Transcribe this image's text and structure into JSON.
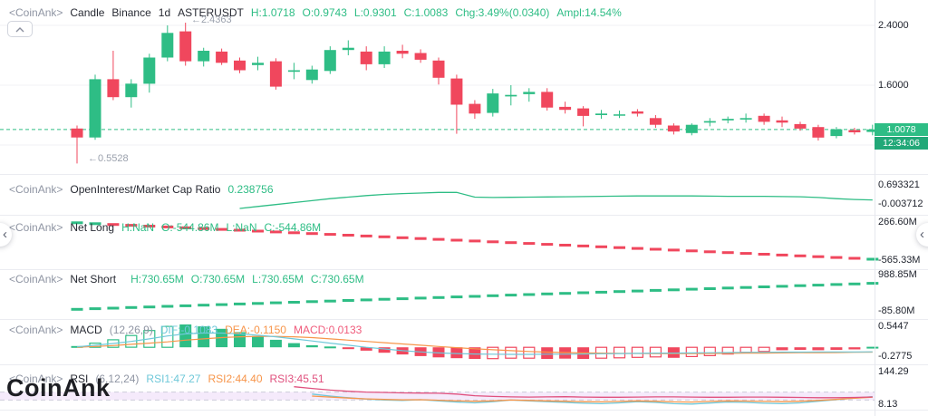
{
  "colors": {
    "up": "#2ebd85",
    "down": "#f0475d",
    "dif": "#6fc8d9",
    "dea": "#f7954a",
    "macd_hist_label": "#f05b7b",
    "rsi1": "#6fc8d9",
    "rsi2": "#f7954a",
    "rsi3": "#e0517e",
    "oi_line": "#2ebd85",
    "band_fill": "#f5eafb",
    "band_line": "#cbccd9",
    "grid": "#f1f2f6",
    "badge_price": "#2ebd85",
    "badge_time": "#22a878"
  },
  "main_header": {
    "tag": "<CoinAnk>",
    "type": "Candle",
    "exchange": "Binance",
    "interval": "1d",
    "symbol": "ASTERUSDT",
    "h": "H:1.0718",
    "o": "O:0.9743",
    "l": "L:0.9301",
    "c": "C:1.0083",
    "chg": "Chg:3.49%(0.0340)",
    "ampl": "Ampl:14.54%"
  },
  "oi_header": {
    "tag": "<CoinAnk>",
    "name": "OpenInterest/Market Cap Ratio",
    "value": "0.238756"
  },
  "netlong_header": {
    "tag": "<CoinAnk>",
    "name": "Net Long",
    "h": "H:NaN",
    "o": "O:-544.86M",
    "l": "L:NaN",
    "c": "C:-544.86M"
  },
  "netshort_header": {
    "tag": "<CoinAnk>",
    "name": "Net Short",
    "h": "H:730.65M",
    "o": "O:730.65M",
    "l": "L:730.65M",
    "c": "C:730.65M"
  },
  "macd_header": {
    "tag": "<CoinAnk>",
    "name": "MACD",
    "params": "(12,26,9)",
    "dif": "DIF:-0.1083",
    "dea": "DEA:-0.1150",
    "macd": "MACD:0.0133"
  },
  "rsi_header": {
    "tag": "<CoinAnk>",
    "name": "RSI",
    "params": "(6,12,24)",
    "rsi1": "RSI1:47.27",
    "rsi2": "RSI2:44.40",
    "rsi3": "RSI3:45.51"
  },
  "axis": {
    "price_top": "2.4000",
    "price_mid": "1.6000",
    "price_badge": "1.0078",
    "countdown": "12:34:06",
    "oi_max": "0.693321",
    "oi_min": "-0.003712",
    "nl_max": "266.60M",
    "nl_min": "-565.33M",
    "ns_max": "988.85M",
    "ns_min": "-85.80M",
    "macd_max": "0.5447",
    "macd_min": "-0.2775",
    "rsi_max": "144.29",
    "rsi_min": "8.13"
  },
  "annotations": {
    "high": "←2.4363",
    "low": "←0.5528"
  },
  "watermark": "CoinAnk",
  "nav": {
    "left_arrow": "‹",
    "right_arrow": "‹"
  },
  "chart_data": [
    {
      "id": "candles",
      "type": "candlestick",
      "pane": "main",
      "symbol": "ASTERUSDT",
      "exchange": "Binance",
      "interval": "1d",
      "axis_labels": [
        2.4,
        1.6
      ],
      "last_price": 1.0078,
      "annotated_high": 2.4363,
      "annotated_low": 0.5528,
      "ohlc": [
        [
          1.02,
          1.06,
          0.5528,
          0.9
        ],
        [
          0.9,
          1.74,
          0.87,
          1.68
        ],
        [
          1.68,
          2.06,
          1.4,
          1.44
        ],
        [
          1.44,
          1.68,
          1.3,
          1.62
        ],
        [
          1.62,
          2.02,
          1.5,
          1.97
        ],
        [
          1.97,
          2.4,
          1.92,
          2.3
        ],
        [
          2.32,
          2.4363,
          1.86,
          1.92
        ],
        [
          1.92,
          2.1,
          1.85,
          2.06
        ],
        [
          2.05,
          2.09,
          1.87,
          1.9
        ],
        [
          1.93,
          1.97,
          1.76,
          1.8
        ],
        [
          1.87,
          1.98,
          1.8,
          1.9
        ],
        [
          1.92,
          1.96,
          1.54,
          1.58
        ],
        [
          1.78,
          1.9,
          1.68,
          1.8
        ],
        [
          1.67,
          1.86,
          1.62,
          1.81
        ],
        [
          1.79,
          2.12,
          1.75,
          2.07
        ],
        [
          2.07,
          2.2,
          2.0,
          2.1
        ],
        [
          2.05,
          2.12,
          1.8,
          1.88
        ],
        [
          1.88,
          2.12,
          1.83,
          2.05
        ],
        [
          2.06,
          2.14,
          1.96,
          2.02
        ],
        [
          2.03,
          2.08,
          1.9,
          1.94
        ],
        [
          1.93,
          1.97,
          1.61,
          1.7
        ],
        [
          1.69,
          1.74,
          0.95,
          1.34
        ],
        [
          1.35,
          1.4,
          1.15,
          1.22
        ],
        [
          1.23,
          1.55,
          1.18,
          1.49
        ],
        [
          1.45,
          1.6,
          1.33,
          1.47
        ],
        [
          1.48,
          1.56,
          1.38,
          1.51
        ],
        [
          1.51,
          1.56,
          1.26,
          1.3
        ],
        [
          1.31,
          1.38,
          1.22,
          1.27
        ],
        [
          1.29,
          1.32,
          1.05,
          1.19
        ],
        [
          1.2,
          1.27,
          1.15,
          1.22
        ],
        [
          1.2,
          1.26,
          1.16,
          1.21
        ],
        [
          1.25,
          1.28,
          1.18,
          1.22
        ],
        [
          1.16,
          1.2,
          1.03,
          1.07
        ],
        [
          1.06,
          1.09,
          0.94,
          0.98
        ],
        [
          0.96,
          1.09,
          0.93,
          1.07
        ],
        [
          1.1,
          1.16,
          1.05,
          1.12
        ],
        [
          1.13,
          1.18,
          1.09,
          1.15
        ],
        [
          1.14,
          1.22,
          1.1,
          1.16
        ],
        [
          1.19,
          1.22,
          1.07,
          1.11
        ],
        [
          1.13,
          1.18,
          1.04,
          1.1
        ],
        [
          1.08,
          1.11,
          0.99,
          1.02
        ],
        [
          1.04,
          1.07,
          0.86,
          0.9
        ],
        [
          0.92,
          1.04,
          0.89,
          1.01
        ],
        [
          1.0,
          1.03,
          0.94,
          0.97
        ],
        [
          0.9743,
          1.0718,
          0.9301,
          1.0083
        ]
      ]
    },
    {
      "id": "oi_ratio",
      "type": "line",
      "pane": "oi",
      "name": "OpenInterest/Market Cap Ratio",
      "current": 0.238756,
      "axis_max": 0.693321,
      "axis_min": -0.003712,
      "start_index": 9,
      "values": [
        0.02,
        0.07,
        0.12,
        0.17,
        0.22,
        0.27,
        0.31,
        0.35,
        0.38,
        0.4,
        0.415,
        0.43,
        0.43,
        0.31,
        0.3,
        0.305,
        0.31,
        0.315,
        0.32,
        0.325,
        0.33,
        0.335,
        0.34,
        0.34,
        0.34,
        0.34,
        0.335,
        0.33,
        0.33,
        0.33,
        0.325,
        0.32,
        0.3,
        0.27,
        0.25,
        0.238756
      ]
    },
    {
      "id": "net_long",
      "type": "dash",
      "pane": "net_long",
      "name": "Net Long",
      "current": -544.86,
      "unit": "M",
      "axis_max": 266.6,
      "axis_min": -565.33,
      "green_indices": [
        0,
        1,
        44
      ],
      "values": [
        250.0,
        231.9,
        213.9,
        195.8,
        177.7,
        159.7,
        141.6,
        123.5,
        105.5,
        87.4,
        69.4,
        51.3,
        33.2,
        15.2,
        -2.9,
        -21.0,
        -39.0,
        -57.1,
        -75.2,
        -93.2,
        -111.3,
        -129.3,
        -147.4,
        -165.5,
        -183.5,
        -201.6,
        -219.7,
        -237.7,
        -255.8,
        -273.8,
        -291.9,
        -310.0,
        -328.0,
        -346.1,
        -364.2,
        -382.2,
        -400.3,
        -418.3,
        -436.4,
        -454.5,
        -472.5,
        -490.6,
        -508.7,
        -526.7,
        -544.86
      ]
    },
    {
      "id": "net_short",
      "type": "dash",
      "pane": "net_short",
      "name": "Net Short",
      "current": 730.65,
      "unit": "M",
      "axis_max": 988.85,
      "axis_min": -85.8,
      "values": [
        -40.0,
        -22.5,
        -5.0,
        12.5,
        30.1,
        47.6,
        65.1,
        82.6,
        100.1,
        117.6,
        135.2,
        152.7,
        170.2,
        187.7,
        205.2,
        222.7,
        240.3,
        257.8,
        275.3,
        292.8,
        310.3,
        327.8,
        345.3,
        362.9,
        380.4,
        397.9,
        415.4,
        432.9,
        450.4,
        468.0,
        485.5,
        503.0,
        520.5,
        538.0,
        555.5,
        573.1,
        590.6,
        608.1,
        625.6,
        643.1,
        660.6,
        678.2,
        695.7,
        713.2,
        730.65
      ]
    },
    {
      "id": "macd",
      "type": "macd",
      "pane": "macd",
      "params": [
        12,
        26,
        9
      ],
      "dif": -0.1083,
      "dea": -0.115,
      "macd": 0.0133,
      "axis_max": 0.5447,
      "axis_min": -0.2775,
      "hist": [
        0.03,
        0.1,
        0.18,
        0.28,
        0.4,
        0.5,
        0.5447,
        0.5,
        0.44,
        0.36,
        0.27,
        0.18,
        0.1,
        0.05,
        0.02,
        -0.03,
        -0.08,
        -0.13,
        -0.17,
        -0.21,
        -0.24,
        -0.26,
        -0.2775,
        -0.27,
        -0.26,
        -0.26,
        -0.2775,
        -0.27,
        -0.2775,
        -0.26,
        -0.25,
        -0.24,
        -0.23,
        -0.25,
        -0.22,
        -0.2,
        -0.16,
        -0.12,
        -0.1,
        -0.07,
        -0.06,
        -0.07,
        -0.06,
        -0.05,
        0.0133
      ],
      "hollow": [
        1,
        2,
        3,
        4,
        5,
        23,
        24,
        25,
        29,
        30,
        31,
        32,
        34,
        35,
        36,
        37,
        38
      ],
      "dif_line": [
        0.01,
        0.05,
        0.09,
        0.14,
        0.2,
        0.27,
        0.32,
        0.34,
        0.34,
        0.32,
        0.29,
        0.25,
        0.2,
        0.15,
        0.1,
        0.05,
        0.0,
        -0.04,
        -0.08,
        -0.11,
        -0.135,
        -0.15,
        -0.16,
        -0.165,
        -0.17,
        -0.17,
        -0.165,
        -0.165,
        -0.16,
        -0.155,
        -0.15,
        -0.145,
        -0.14,
        -0.14,
        -0.135,
        -0.13,
        -0.125,
        -0.12,
        -0.12,
        -0.115,
        -0.115,
        -0.11,
        -0.11,
        -0.11,
        -0.1083
      ],
      "dea_line": [
        0.0,
        0.02,
        0.04,
        0.07,
        0.1,
        0.13,
        0.17,
        0.2,
        0.23,
        0.25,
        0.26,
        0.26,
        0.25,
        0.23,
        0.2,
        0.17,
        0.14,
        0.11,
        0.08,
        0.05,
        0.02,
        -0.01,
        -0.035,
        -0.06,
        -0.08,
        -0.1,
        -0.115,
        -0.125,
        -0.135,
        -0.14,
        -0.145,
        -0.148,
        -0.15,
        -0.15,
        -0.15,
        -0.148,
        -0.145,
        -0.14,
        -0.138,
        -0.135,
        -0.13,
        -0.128,
        -0.125,
        -0.12,
        -0.115
      ]
    },
    {
      "id": "rsi",
      "type": "line-multi",
      "pane": "rsi",
      "params": [
        6,
        12,
        24
      ],
      "current": [
        47.27,
        44.4,
        45.51
      ],
      "axis_max": 144.29,
      "axis_min": 8.13,
      "band": [
        70,
        30
      ],
      "rsi3_start": 12,
      "rsi3": [
        97,
        88,
        80,
        74,
        70,
        68,
        66,
        65,
        64,
        60,
        52,
        48,
        46,
        45,
        46,
        47,
        45,
        44,
        44,
        45,
        46,
        46,
        45,
        44,
        44,
        45,
        45,
        44,
        43,
        42,
        42,
        43,
        45.51
      ],
      "rsi1_start": 13,
      "rsi1": [
        60,
        50,
        42,
        35,
        30,
        28,
        32,
        26,
        20,
        16,
        22,
        30,
        26,
        22,
        18,
        14,
        12,
        16,
        22,
        18,
        12,
        10,
        15,
        20,
        18,
        14,
        12,
        16,
        24,
        32,
        40,
        47.27
      ],
      "rsi2_start": 13,
      "rsi2": [
        50,
        45,
        40,
        36,
        33,
        31,
        32,
        29,
        26,
        24,
        26,
        30,
        28,
        26,
        24,
        22,
        21,
        23,
        26,
        24,
        21,
        20,
        23,
        26,
        25,
        23,
        22,
        24,
        28,
        33,
        39,
        44.4
      ]
    }
  ]
}
